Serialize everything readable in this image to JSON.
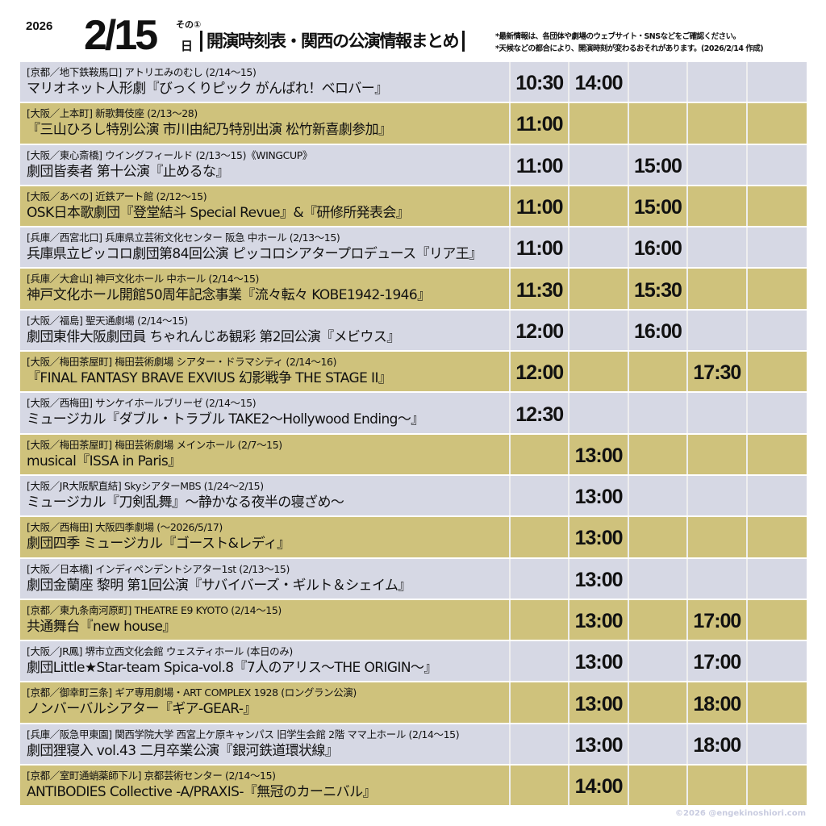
{
  "header": {
    "year": "2026",
    "date": "2/15",
    "part": "その①",
    "day": "日",
    "title": "開演時刻表・関西の公演情報まとめ",
    "notes": [
      "*最新情報は、各団体や劇場のウェブサイト・SNSなどをご確認ください。",
      "*天候などの都合により、開演時刻が変わるおそれがあります。(2026/2/14 作成)"
    ]
  },
  "colors": {
    "row_light": "#d6d8e4",
    "row_khaki": "#cfc27c"
  },
  "rows": [
    {
      "venue": "[京都／地下鉄鞍馬口] アトリエみのむし (2/14〜15)",
      "show": "マリオネット人形劇『びっくりピック がんばれ！ベロバー』",
      "times": [
        "10:30",
        "14:00",
        "",
        "",
        ""
      ]
    },
    {
      "venue": "[大阪／上本町] 新歌舞伎座 (2/13〜28)",
      "show": "『三山ひろし特別公演 市川由紀乃特別出演 松竹新喜劇参加』",
      "times": [
        "11:00",
        "",
        "",
        "",
        ""
      ]
    },
    {
      "venue": "[大阪／東心斎橋] ウイングフィールド (2/13〜15)《WINGCUP》",
      "show": "劇団皆奏者 第十公演『止めるな』",
      "times": [
        "11:00",
        "",
        "15:00",
        "",
        ""
      ]
    },
    {
      "venue": "[大阪／あべの] 近鉄アート館 (2/12〜15)",
      "show": "OSK日本歌劇団『登堂結斗 Special Revue』&『研修所発表会』",
      "times": [
        "11:00",
        "",
        "15:00",
        "",
        ""
      ]
    },
    {
      "venue": "[兵庫／西宮北口] 兵庫県立芸術文化センター 阪急 中ホール (2/13〜15)",
      "show": "兵庫県立ピッコロ劇団第84回公演 ピッコロシアタープロデュース『リア王』",
      "times": [
        "11:00",
        "",
        "16:00",
        "",
        ""
      ]
    },
    {
      "venue": "[兵庫／大倉山] 神戸文化ホール 中ホール (2/14〜15)",
      "show": "神戸文化ホール開館50周年記念事業『流々転々 KOBE1942-1946』",
      "times": [
        "11:30",
        "",
        "15:30",
        "",
        ""
      ]
    },
    {
      "venue": "[大阪／福島] 聖天通劇場 (2/14〜15)",
      "show": "劇団東俳大阪劇団員 ちゃれんじあ観彩 第2回公演『メビウス』",
      "times": [
        "12:00",
        "",
        "16:00",
        "",
        ""
      ]
    },
    {
      "venue": "[大阪／梅田茶屋町] 梅田芸術劇場 シアター・ドラマシティ (2/14〜16)",
      "show": "『FINAL FANTASY BRAVE EXVIUS 幻影戦争 THE STAGE II』",
      "times": [
        "12:00",
        "",
        "",
        "17:30",
        ""
      ]
    },
    {
      "venue": "[大阪／西梅田] サンケイホールブリーゼ (2/14〜15)",
      "show": "ミュージカル『ダブル・トラブル TAKE2〜Hollywood Ending〜』",
      "times": [
        "12:30",
        "",
        "",
        "",
        ""
      ]
    },
    {
      "venue": "[大阪／梅田茶屋町] 梅田芸術劇場 メインホール (2/7〜15)",
      "show": "musical『ISSA in Paris』",
      "times": [
        "",
        "13:00",
        "",
        "",
        ""
      ]
    },
    {
      "venue": "[大阪／JR大阪駅直結] SkyシアターMBS (1/24〜2/15)",
      "show": "ミュージカル『刀剣乱舞』〜静かなる夜半の寝ざめ〜",
      "times": [
        "",
        "13:00",
        "",
        "",
        ""
      ]
    },
    {
      "venue": "[大阪／西梅田] 大阪四季劇場 (〜2026/5/17)",
      "show": "劇団四季 ミュージカル『ゴースト&レディ』",
      "times": [
        "",
        "13:00",
        "",
        "",
        ""
      ]
    },
    {
      "venue": "[大阪／日本橋] インディペンデントシアター1st (2/13〜15)",
      "show": "劇団金蘭座 黎明 第1回公演『サバイバーズ・ギルト＆シェイム』",
      "times": [
        "",
        "13:00",
        "",
        "",
        ""
      ]
    },
    {
      "venue": "[京都／東九条南河原町] THEATRE E9 KYOTO (2/14〜15)",
      "show": "共通舞台『new house』",
      "times": [
        "",
        "13:00",
        "",
        "17:00",
        ""
      ]
    },
    {
      "venue": "[大阪／JR鳳] 堺市立西文化会館 ウェスティホール (本日のみ)",
      "show": "劇団Little★Star-team Spica-vol.8『7人のアリス〜THE ORIGIN〜』",
      "times": [
        "",
        "13:00",
        "",
        "17:00",
        ""
      ]
    },
    {
      "venue": "[京都／御幸町三条] ギア専用劇場・ART COMPLEX 1928 (ロングラン公演)",
      "show": "ノンバーバルシアター『ギア-GEAR-』",
      "times": [
        "",
        "13:00",
        "",
        "18:00",
        ""
      ]
    },
    {
      "venue": "[兵庫／阪急甲東園] 関西学院大学 西宮上ケ原キャンパス 旧学生会館 2階 ママ上ホール (2/14〜15)",
      "show": "劇団狸寝入 vol.43 二月卒業公演『銀河鉄道環状線』",
      "times": [
        "",
        "13:00",
        "",
        "18:00",
        ""
      ]
    },
    {
      "venue": "[京都／室町通蛸薬師下ル] 京都芸術センター (2/14〜15)",
      "show": "ANTIBODIES Collective -A/PRAXIS-『無冠のカーニバル』",
      "times": [
        "",
        "14:00",
        "",
        "",
        ""
      ]
    }
  ],
  "credit": "©2026 @engekinoshiori.com"
}
